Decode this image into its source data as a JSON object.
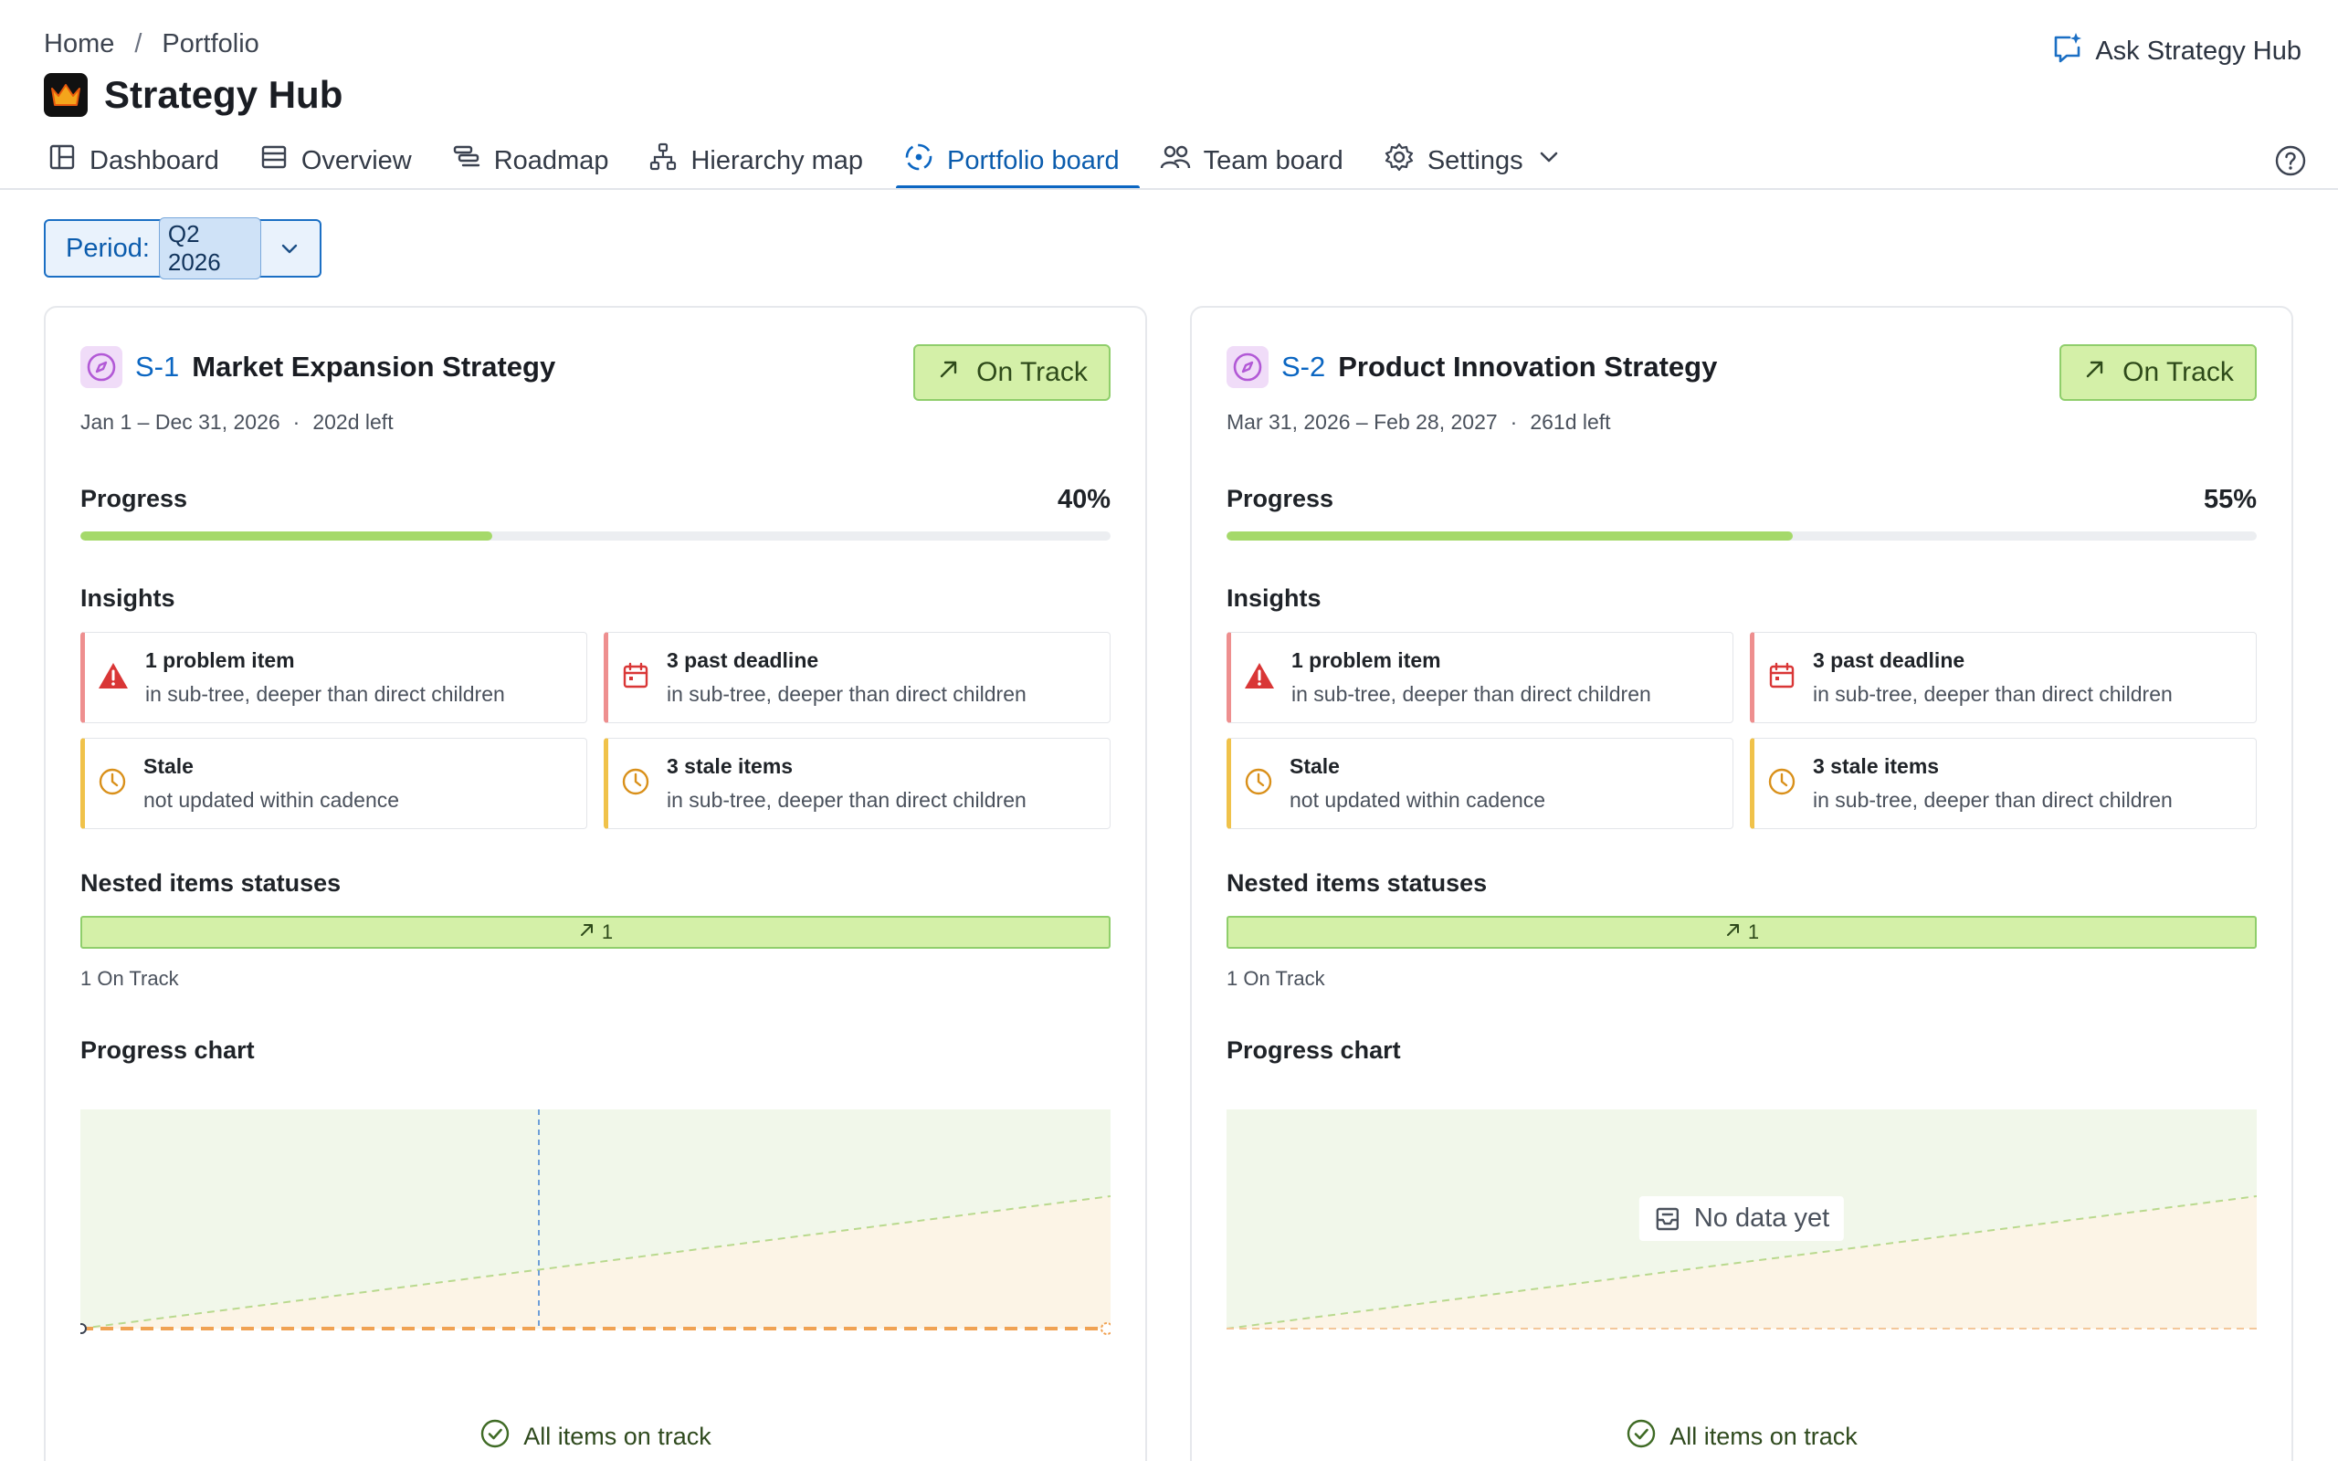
{
  "breadcrumb": {
    "home": "Home",
    "separator": "/",
    "current": "Portfolio"
  },
  "app": {
    "title": "Strategy Hub",
    "logo_icon": "crown-icon"
  },
  "ask_button": {
    "label": "Ask Strategy Hub",
    "icon": "ai-chat-icon"
  },
  "tabs": [
    {
      "label": "Dashboard",
      "icon": "dashboard-icon",
      "active": false
    },
    {
      "label": "Overview",
      "icon": "list-icon",
      "active": false
    },
    {
      "label": "Roadmap",
      "icon": "roadmap-icon",
      "active": false
    },
    {
      "label": "Hierarchy map",
      "icon": "hierarchy-icon",
      "active": false
    },
    {
      "label": "Portfolio board",
      "icon": "target-icon",
      "active": true
    },
    {
      "label": "Team board",
      "icon": "team-icon",
      "active": false
    },
    {
      "label": "Settings",
      "icon": "gear-icon",
      "active": false
    }
  ],
  "period": {
    "label": "Period:",
    "value": "Q2 2026"
  },
  "colors": {
    "accent": "#0b66c2",
    "on_track": "#d4f0a8",
    "progress": "#a5d96a",
    "problem": "#d93636",
    "stale": "#d9901a"
  },
  "cards": [
    {
      "id": "S-1",
      "name": "Market Expansion Strategy",
      "status": "On Track",
      "date_range": "Jan 1 – Dec 31, 2026",
      "dot": "·",
      "time_left": "202d left",
      "progress_label": "Progress",
      "progress_value": "40%",
      "progress_fraction": 0.4,
      "insights_label": "Insights",
      "insights": [
        {
          "title": "1 problem item",
          "subtitle": "in sub-tree, deeper than direct children",
          "icon": "warning-icon",
          "kind": "problem"
        },
        {
          "title": "3 past deadline",
          "subtitle": "in sub-tree, deeper than direct children",
          "icon": "calendar-icon",
          "kind": "problem"
        },
        {
          "title": "Stale",
          "subtitle": "not updated within cadence",
          "icon": "clock-icon",
          "kind": "warn"
        },
        {
          "title": "3 stale items",
          "subtitle": "in sub-tree, deeper than direct children",
          "icon": "clock-icon",
          "kind": "warn"
        }
      ],
      "nested_label": "Nested items statuses",
      "nested_count": "1",
      "nested_caption": "1 On Track",
      "chart_label": "Progress chart",
      "has_chart_data": true,
      "no_data_text": "",
      "footer": "All items on track"
    },
    {
      "id": "S-2",
      "name": "Product Innovation Strategy",
      "status": "On Track",
      "date_range": "Mar 31, 2026 – Feb 28, 2027",
      "dot": "·",
      "time_left": "261d left",
      "progress_label": "Progress",
      "progress_value": "55%",
      "progress_fraction": 0.55,
      "insights_label": "Insights",
      "insights": [
        {
          "title": "1 problem item",
          "subtitle": "in sub-tree, deeper than direct children",
          "icon": "warning-icon",
          "kind": "problem"
        },
        {
          "title": "3 past deadline",
          "subtitle": "in sub-tree, deeper than direct children",
          "icon": "calendar-icon",
          "kind": "problem"
        },
        {
          "title": "Stale",
          "subtitle": "not updated within cadence",
          "icon": "clock-icon",
          "kind": "warn"
        },
        {
          "title": "3 stale items",
          "subtitle": "in sub-tree, deeper than direct children",
          "icon": "clock-icon",
          "kind": "warn"
        }
      ],
      "nested_label": "Nested items statuses",
      "nested_count": "1",
      "nested_caption": "1 On Track",
      "chart_label": "Progress chart",
      "has_chart_data": false,
      "no_data_text": "No data yet",
      "footer": "All items on track"
    }
  ]
}
